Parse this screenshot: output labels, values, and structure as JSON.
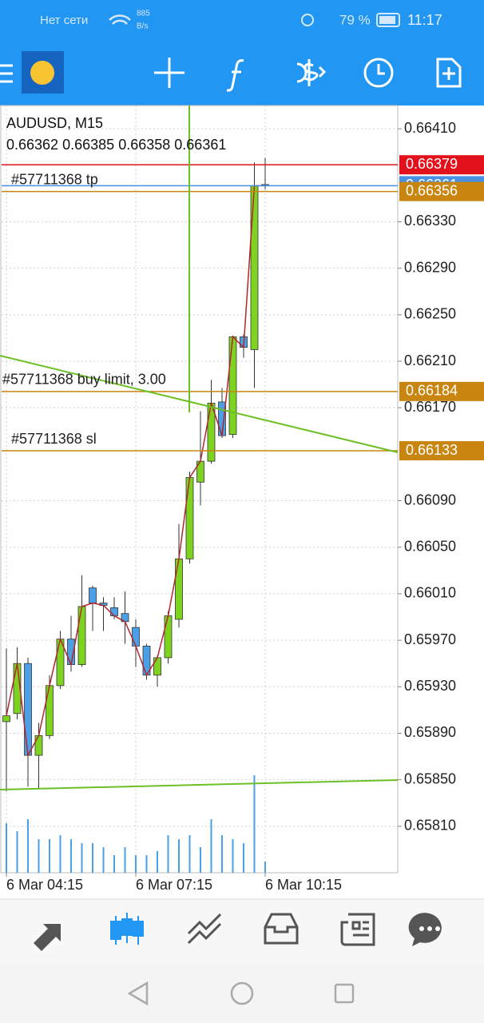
{
  "status_bar": {
    "carrier": "Нет сети",
    "speed": "885",
    "speed_unit": "B/s",
    "battery": "79 %",
    "time": "11:17"
  },
  "chart_data": {
    "type": "candlestick",
    "title": "AUDUSD, M15",
    "categories": [
      "6 Mar 04:15",
      null,
      null,
      null,
      null,
      null,
      null,
      null,
      null,
      null,
      null,
      null,
      "6 Mar 07:15",
      null,
      null,
      null,
      null,
      null,
      null,
      null,
      null,
      null,
      null,
      null,
      "6 Mar 10:15"
    ],
    "open": [
      0.659,
      0.65907,
      0.6595,
      0.65871,
      0.65888,
      0.65931,
      0.65971,
      0.65949,
      0.66015,
      0.66002,
      0.65998,
      0.65993,
      0.65981,
      0.65965,
      0.6594,
      0.65955,
      0.65988,
      0.6604,
      0.66106,
      0.66124,
      0.66175,
      0.66147,
      0.66231,
      0.6622,
      0.66362
    ],
    "high": [
      0.65963,
      0.65964,
      0.65955,
      0.65899,
      0.6594,
      0.65978,
      0.65991,
      0.66026,
      0.66017,
      0.66007,
      0.66007,
      0.66012,
      0.65988,
      0.65967,
      0.65957,
      0.65995,
      0.6607,
      0.66115,
      0.66167,
      0.66194,
      0.66187,
      0.66232,
      0.66233,
      0.66381,
      0.66385
    ],
    "low": [
      0.6584,
      0.65902,
      0.65844,
      0.65842,
      0.65885,
      0.65928,
      0.65943,
      0.65947,
      0.65978,
      0.65978,
      0.65988,
      0.65967,
      0.65947,
      0.65936,
      0.6593,
      0.6595,
      0.65981,
      0.66036,
      0.66086,
      0.66122,
      0.66144,
      0.66144,
      0.66213,
      0.66187,
      0.66358
    ],
    "close": [
      0.65905,
      0.6595,
      0.65871,
      0.65888,
      0.65931,
      0.65971,
      0.65949,
      0.65999,
      0.66002,
      0.66,
      0.65991,
      0.65986,
      0.65965,
      0.6594,
      0.65955,
      0.65991,
      0.6604,
      0.6611,
      0.66124,
      0.66174,
      0.66146,
      0.66231,
      0.66222,
      0.66361,
      0.66361
    ],
    "volumes": [
      62,
      52,
      67,
      42,
      42,
      47,
      42,
      37,
      37,
      32,
      22,
      32,
      22,
      22,
      27,
      47,
      42,
      47,
      32,
      67,
      47,
      42,
      37,
      122,
      14
    ],
    "up_color": "#7ed321",
    "down_color": "#4a9fe6",
    "close_line_color": "#b3262a",
    "volume_color": "#4a9fe6",
    "ylim": [
      0.6577,
      0.6643
    ],
    "yticks": [
      {
        "value": 0.6641,
        "label": "0.66410"
      },
      {
        "value": 0.6633,
        "label": "0.66330"
      },
      {
        "value": 0.6629,
        "label": "0.66290"
      },
      {
        "value": 0.6625,
        "label": "0.66250"
      },
      {
        "value": 0.6621,
        "label": "0.66210"
      },
      {
        "value": 0.6617,
        "label": "0.66170"
      },
      {
        "value": 0.6609,
        "label": "0.66090"
      },
      {
        "value": 0.6605,
        "label": "0.66050"
      },
      {
        "value": 0.6601,
        "label": "0.66010"
      },
      {
        "value": 0.6597,
        "label": "0.65970"
      },
      {
        "value": 0.6593,
        "label": "0.65930"
      },
      {
        "value": 0.6589,
        "label": "0.65890"
      },
      {
        "value": 0.6585,
        "label": "0.65850"
      },
      {
        "value": 0.6581,
        "label": "0.65810"
      }
    ],
    "grid": true,
    "price_lines": [
      {
        "value": 0.66379,
        "color": "#e3111c"
      },
      {
        "value": 0.66361,
        "color": "#4a90e2"
      },
      {
        "value": 0.66356,
        "color": "#c8850f",
        "label": "#57711368 tp"
      },
      {
        "value": 0.66184,
        "color": "#c8850f",
        "label": "#57711368 buy limit, 3.00"
      },
      {
        "value": 0.66133,
        "color": "#c8850f",
        "label": "#57711368 sl"
      }
    ]
  }
}
